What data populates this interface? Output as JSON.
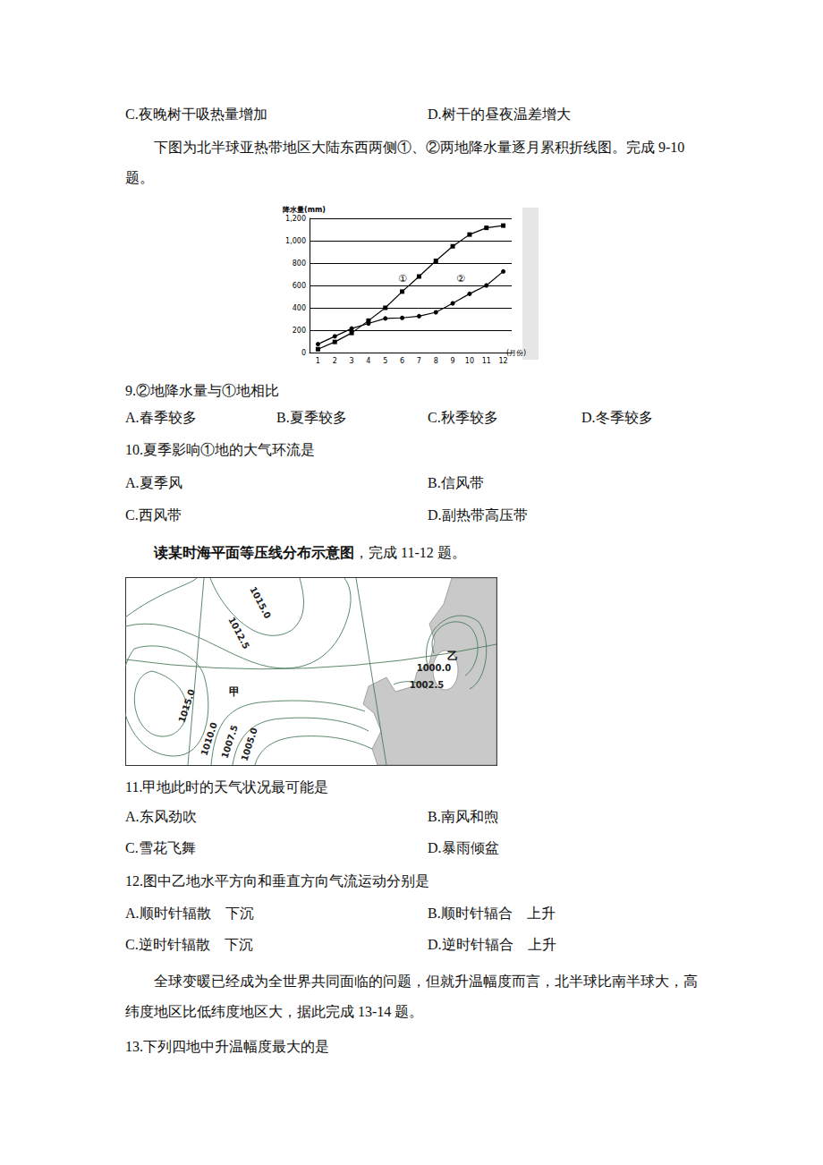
{
  "document": {
    "top_options": [
      "C.夜晚树干吸热量增加",
      "D.树干的昼夜温差增大"
    ],
    "intro_9_10": "下图为北半球亚热带地区大陆东西两侧①、②两地降水量逐月累积折线图。完成 9-10 题。",
    "q9": {
      "stem": "9.②地降水量与①地相比",
      "options": [
        "A.春季较多",
        "B.夏季较多",
        "C.秋季较多",
        "D.冬季较多"
      ]
    },
    "q10": {
      "stem": "10.夏季影响①地的大气环流是",
      "options": [
        "A.夏季风",
        "B.信风带",
        "C.西风带",
        "D.副热带高压带"
      ]
    },
    "intro_11_12": {
      "bold": "读某时海平面等压线分布示意图",
      "rest": "，完成 11-12 题。"
    },
    "q11": {
      "stem": "11.甲地此时的天气状况最可能是",
      "options": [
        "A.东风劲吹",
        "B.南风和煦",
        "C.雪花飞舞",
        "D.暴雨倾盆"
      ]
    },
    "q12": {
      "stem": "12.图中乙地水平方向和垂直方向气流运动分别是",
      "options": [
        "A.顺时针辐散　下沉",
        "B.顺时针辐合　上升",
        "C.逆时针辐散　下沉",
        "D.逆时针辐合　上升"
      ]
    },
    "intro_13_14": "全球变暖已经成为全世界共同面临的问题，但就升温幅度而言，北半球比南半球大，高纬度地区比低纬度地区大，据此完成 13-14 题。",
    "q13": {
      "stem": "13.下列四地中升温幅度最大的是"
    }
  },
  "chart_data": {
    "type": "line",
    "title": "降水量(mm)",
    "x_label": "(月份)",
    "categories": [
      "1",
      "2",
      "3",
      "4",
      "5",
      "6",
      "7",
      "8",
      "9",
      "10",
      "11",
      "12"
    ],
    "series": [
      {
        "name": "①",
        "color": "#000000",
        "marker": "square",
        "line_style": "solid",
        "values": [
          30,
          95,
          175,
          285,
          400,
          545,
          680,
          820,
          950,
          1055,
          1115,
          1135
        ]
      },
      {
        "name": "②",
        "color": "#000000",
        "marker": "circle",
        "line_style": "solid",
        "values": [
          75,
          145,
          215,
          260,
          305,
          310,
          325,
          360,
          440,
          525,
          600,
          725
        ]
      }
    ],
    "ylim": [
      0,
      1200
    ],
    "yticks": [
      0,
      200,
      400,
      600,
      800,
      1000,
      1200
    ],
    "grid": true
  },
  "map": {
    "isobar_labels": [
      "1015.0",
      "1012.5",
      "1015.0",
      "1010.0",
      "1007.5",
      "1005.0",
      "1000.0",
      "1002.5"
    ],
    "places": [
      "甲",
      "乙"
    ]
  }
}
